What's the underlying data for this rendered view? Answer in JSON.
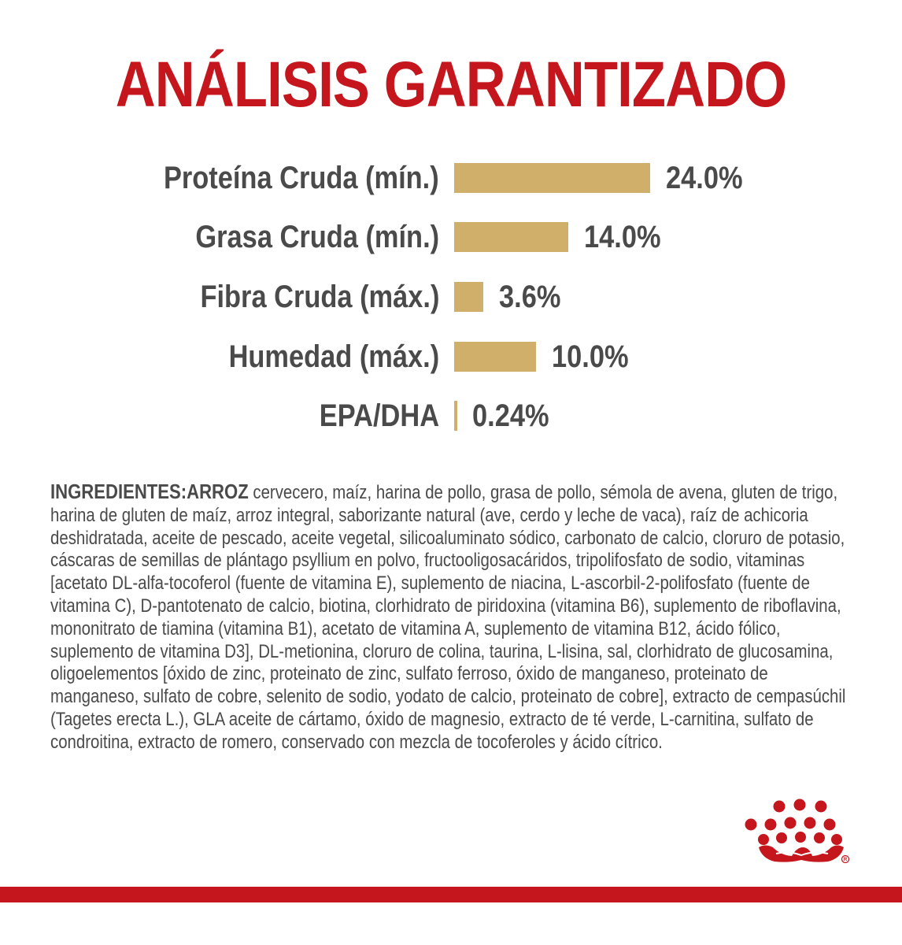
{
  "header": {
    "title": "ANÁLISIS GARANTIZADO"
  },
  "chart_data": {
    "type": "bar",
    "orientation": "horizontal",
    "categories": [
      "Proteína Cruda (mín.)",
      "Grasa Cruda (mín.)",
      "Fibra Cruda (máx.)",
      "Humedad (máx.)",
      "EPA/DHA"
    ],
    "values": [
      24.0,
      14.0,
      3.6,
      10.0,
      0.24
    ],
    "value_labels": [
      "24.0%",
      "14.0%",
      "3.6%",
      "10.0%",
      "0.24%"
    ],
    "title": "ANÁLISIS GARANTIZADO",
    "xlabel": "",
    "ylabel": "",
    "xlim": [
      0,
      24
    ],
    "grid": false,
    "bar_color": "#cfaf6a"
  },
  "ingredients": {
    "heading": "INGREDIENTES:ARROZ",
    "text": " cervecero, maíz, harina de pollo, grasa de pollo, sémola de avena, gluten de trigo, harina de gluten de maíz, arroz integral, saborizante natural (ave, cerdo y leche de vaca), raíz de achicoria deshidratada, aceite de pescado, aceite vegetal, silicoaluminato sódico, carbonato de calcio, cloruro de potasio, cáscaras de semillas de plántago psyllium en polvo, fructooligosacáridos, tripolifosfato de sodio, vitaminas [acetato DL-alfa-tocoferol (fuente de vitamina E), suplemento de niacina, L-ascorbil-2-polifosfato (fuente de vitamina C), D-pantotenato de calcio, biotina, clorhidrato de piridoxina (vitamina B6), suplemento de riboflavina, mononitrato de tiamina (vitamina B1), acetato de vitamina A, suplemento de vitamina B12, ácido fólico, suplemento de vitamina D3], DL-metionina, cloruro de colina, taurina, L-lisina, sal, clorhidrato de glucosamina, oligoelementos [óxido de zinc, proteinato de zinc, sulfato ferroso, óxido de manganeso, proteinato de manganeso, sulfato de cobre, selenito de sodio, yodato de calcio, proteinato de cobre], extracto de cempasúchil (Tagetes erecta L.), GLA aceite de cártamo, óxido de magnesio, extracto de té verde, L-carnitina, sulfato de condroitina, extracto de romero, conservado con mezcla de tocoferoles y ácido cítrico."
  },
  "brand": {
    "logo": "crown-logo-icon",
    "color": "#c4161c"
  }
}
